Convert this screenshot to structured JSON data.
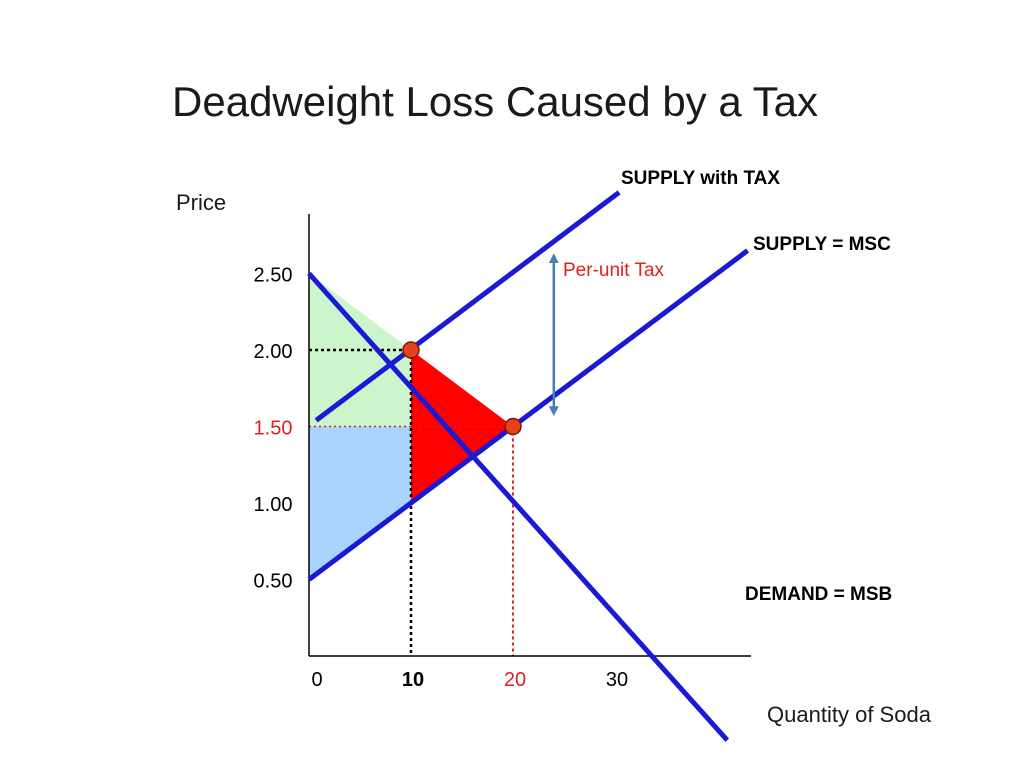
{
  "title": "Deadweight Loss Caused by a Tax",
  "chart_data": {
    "type": "line",
    "title": "Deadweight Loss Caused by a Tax",
    "xlabel": "Quantity of Soda",
    "ylabel": "Price",
    "x_ticks": [
      {
        "value": 0,
        "label": "0",
        "color": "#000000",
        "bold": false
      },
      {
        "value": 10,
        "label": "10",
        "color": "#000000",
        "bold": true
      },
      {
        "value": 20,
        "label": "20",
        "color": "#e02020",
        "bold": false
      },
      {
        "value": 30,
        "label": "30",
        "color": "#000000",
        "bold": false
      }
    ],
    "y_ticks": [
      {
        "value": 0.5,
        "label": "0.50",
        "color": "#000000"
      },
      {
        "value": 1.0,
        "label": "1.00",
        "color": "#000000"
      },
      {
        "value": 1.5,
        "label": "1.50",
        "color": "#e02020"
      },
      {
        "value": 2.0,
        "label": "2.00",
        "color": "#000000"
      },
      {
        "value": 2.5,
        "label": "2.50",
        "color": "#000000"
      }
    ],
    "series": [
      {
        "name": "DEMAND = MSB",
        "color": "#1a1ad6",
        "x": [
          0,
          41
        ],
        "y": [
          2.5,
          -0.55
        ]
      },
      {
        "name": "SUPPLY = MSC",
        "color": "#1a1ad6",
        "x": [
          0,
          43
        ],
        "y": [
          0.5,
          2.65
        ]
      },
      {
        "name": "SUPPLY with TAX",
        "color": "#1a1ad6",
        "x": [
          0.7,
          30.4
        ],
        "y": [
          1.54,
          3.03
        ]
      }
    ],
    "equilibria": [
      {
        "x": 10,
        "y": 2.0,
        "color": "#e8401c"
      },
      {
        "x": 20,
        "y": 1.5,
        "color": "#e8401c"
      }
    ],
    "regions": [
      {
        "name": "consumer surplus",
        "color": "#ccf5cc",
        "points": [
          [
            0,
            2.5
          ],
          [
            10,
            2.0
          ],
          [
            0,
            2.0
          ]
        ]
      },
      {
        "name": "tax revenue (consumer share)",
        "color": "#ccf5cc",
        "points": [
          [
            0,
            2.0
          ],
          [
            10,
            2.0
          ],
          [
            10,
            1.5
          ],
          [
            0,
            1.5
          ]
        ]
      },
      {
        "name": "tax revenue (producer share)",
        "color": "#a8d4ff",
        "points": [
          [
            0,
            1.5
          ],
          [
            10,
            1.5
          ],
          [
            10,
            1.0
          ],
          [
            0,
            0.5
          ]
        ]
      },
      {
        "name": "deadweight loss",
        "color": "#ff0000",
        "points": [
          [
            10,
            2.0
          ],
          [
            20,
            1.5
          ],
          [
            10,
            1.0
          ]
        ]
      }
    ],
    "annotations": {
      "per_unit_tax": {
        "label": "Per-unit Tax",
        "color": "#e02020",
        "arrow_color": "#4a7fb5",
        "x": 24,
        "y_from": 1.6,
        "y_to": 2.6
      }
    },
    "xlim": [
      0,
      44
    ],
    "ylim": [
      0,
      2.9
    ],
    "grid": false
  }
}
